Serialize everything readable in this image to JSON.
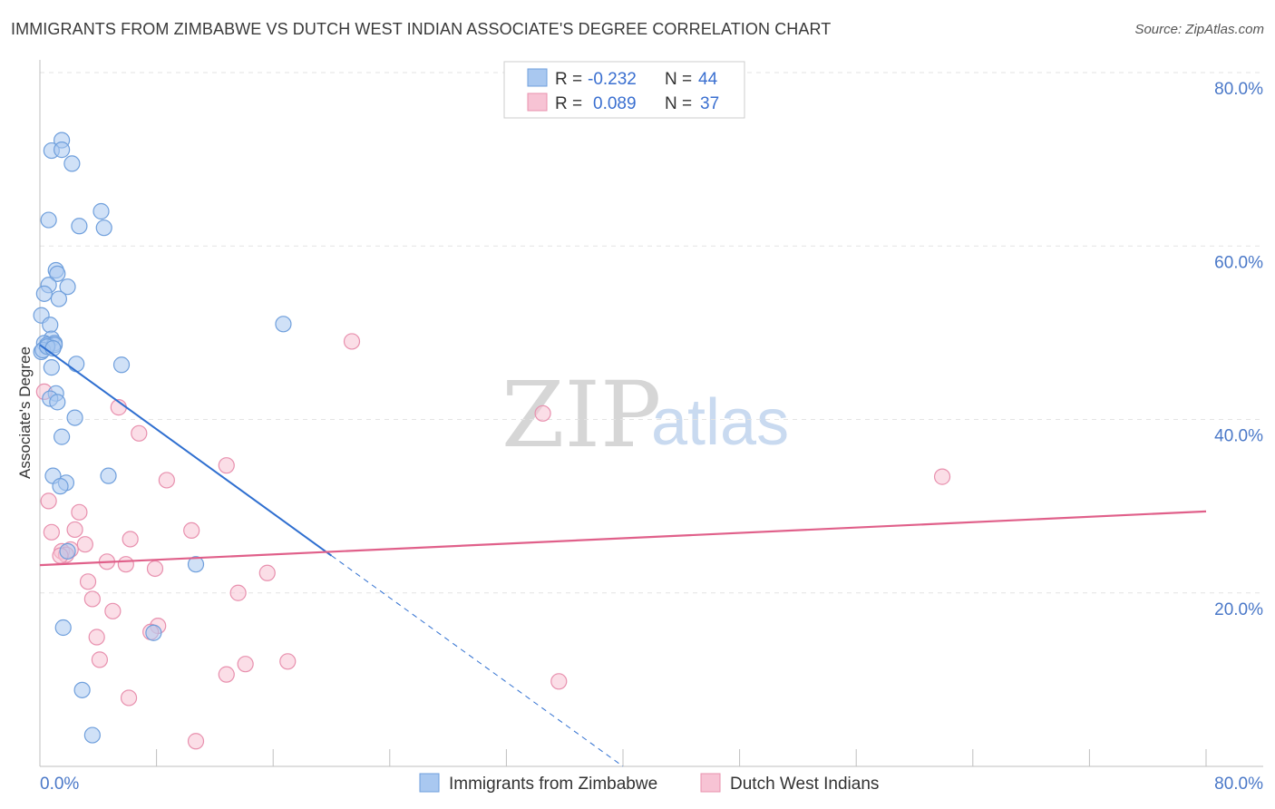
{
  "header": {
    "title": "IMMIGRANTS FROM ZIMBABWE VS DUTCH WEST INDIAN ASSOCIATE'S DEGREE CORRELATION CHART",
    "source": "Source: ZipAtlas.com"
  },
  "watermark": {
    "zip": "ZIP",
    "atlas": "atlas"
  },
  "colors": {
    "blue_fill": "#a9c8f0",
    "blue_stroke": "#6f9fdc",
    "blue_line": "#2f6fd0",
    "pink_fill": "#f7c3d4",
    "pink_stroke": "#e890ae",
    "pink_line": "#e0608a",
    "grid": "#e3e3e3",
    "tick_text": "#4a78c8"
  },
  "legend": {
    "rows": [
      {
        "r_label": "R =",
        "r_value": "-0.232",
        "n_label": "N =",
        "n_value": "44",
        "color": "blue"
      },
      {
        "r_label": "R =",
        "r_value": "0.089",
        "n_label": "N =",
        "n_value": "37",
        "color": "pink"
      }
    ]
  },
  "chart_data": {
    "type": "scatter",
    "title": "IMMIGRANTS FROM ZIMBABWE VS DUTCH WEST INDIAN ASSOCIATE'S DEGREE CORRELATION CHART",
    "xlabel": "",
    "ylabel": "Associate's Degree",
    "xlim": [
      0,
      80
    ],
    "ylim": [
      0,
      80
    ],
    "x_ticks": [
      "0.0%",
      "80.0%"
    ],
    "y_ticks": [
      {
        "value": 20,
        "label": "20.0%"
      },
      {
        "value": 40,
        "label": "40.0%"
      },
      {
        "value": 60,
        "label": "60.0%"
      },
      {
        "value": 80,
        "label": "80.0%"
      }
    ],
    "grid": true,
    "legend_position": "top-center",
    "series": [
      {
        "name": "Immigrants from Zimbabwe",
        "color": "blue",
        "R": -0.232,
        "N": 44,
        "points": [
          [
            1.5,
            72.2
          ],
          [
            0.8,
            71.0
          ],
          [
            1.5,
            71.1
          ],
          [
            2.2,
            69.5
          ],
          [
            0.6,
            63.0
          ],
          [
            4.2,
            64.0
          ],
          [
            2.7,
            62.3
          ],
          [
            4.4,
            62.1
          ],
          [
            1.1,
            57.2
          ],
          [
            1.2,
            56.8
          ],
          [
            0.6,
            55.5
          ],
          [
            1.9,
            55.3
          ],
          [
            0.3,
            54.5
          ],
          [
            1.3,
            53.9
          ],
          [
            0.1,
            52.0
          ],
          [
            0.7,
            50.9
          ],
          [
            16.7,
            51.0
          ],
          [
            0.8,
            49.3
          ],
          [
            0.3,
            48.8
          ],
          [
            1.0,
            48.8
          ],
          [
            0.5,
            48.6
          ],
          [
            1.0,
            48.6
          ],
          [
            0.1,
            47.8
          ],
          [
            0.8,
            46.0
          ],
          [
            2.5,
            46.4
          ],
          [
            5.6,
            46.3
          ],
          [
            1.1,
            43.0
          ],
          [
            0.7,
            42.4
          ],
          [
            1.2,
            42.0
          ],
          [
            2.4,
            40.2
          ],
          [
            1.5,
            38.0
          ],
          [
            0.9,
            33.5
          ],
          [
            4.7,
            33.5
          ],
          [
            1.8,
            32.7
          ],
          [
            1.4,
            32.3
          ],
          [
            1.9,
            24.8
          ],
          [
            10.7,
            23.3
          ],
          [
            1.6,
            16.0
          ],
          [
            7.8,
            15.4
          ],
          [
            2.9,
            8.8
          ],
          [
            3.6,
            3.6
          ],
          [
            0.2,
            48.0
          ],
          [
            0.5,
            48.4
          ],
          [
            0.9,
            48.2
          ]
        ],
        "trend": {
          "x_start": 0,
          "y_start": 48.6,
          "x_solid_end": 20,
          "x_dash_end": 40,
          "y_dash_end": 0
        }
      },
      {
        "name": "Dutch West Indians",
        "color": "pink",
        "R": 0.089,
        "N": 37,
        "points": [
          [
            0.3,
            43.2
          ],
          [
            21.4,
            49.0
          ],
          [
            5.4,
            41.4
          ],
          [
            34.5,
            40.7
          ],
          [
            6.8,
            38.4
          ],
          [
            12.8,
            34.7
          ],
          [
            8.7,
            33.0
          ],
          [
            61.9,
            33.4
          ],
          [
            0.6,
            30.6
          ],
          [
            2.7,
            29.3
          ],
          [
            0.8,
            27.0
          ],
          [
            2.4,
            27.3
          ],
          [
            10.4,
            27.2
          ],
          [
            6.2,
            26.2
          ],
          [
            3.1,
            25.6
          ],
          [
            2.1,
            25.0
          ],
          [
            1.5,
            24.8
          ],
          [
            1.8,
            24.4
          ],
          [
            1.4,
            24.3
          ],
          [
            4.6,
            23.6
          ],
          [
            5.9,
            23.3
          ],
          [
            7.9,
            22.8
          ],
          [
            15.6,
            22.3
          ],
          [
            3.3,
            21.3
          ],
          [
            13.6,
            20.0
          ],
          [
            3.6,
            19.3
          ],
          [
            5.0,
            17.9
          ],
          [
            8.1,
            16.2
          ],
          [
            7.6,
            15.5
          ],
          [
            3.9,
            14.9
          ],
          [
            4.1,
            12.3
          ],
          [
            17.0,
            12.1
          ],
          [
            14.1,
            11.8
          ],
          [
            12.8,
            10.6
          ],
          [
            35.6,
            9.8
          ],
          [
            6.1,
            7.9
          ],
          [
            10.7,
            2.9
          ]
        ],
        "trend": {
          "x_start": 0,
          "y_start": 23.2,
          "x_end": 80,
          "y_end": 29.4
        }
      }
    ]
  }
}
